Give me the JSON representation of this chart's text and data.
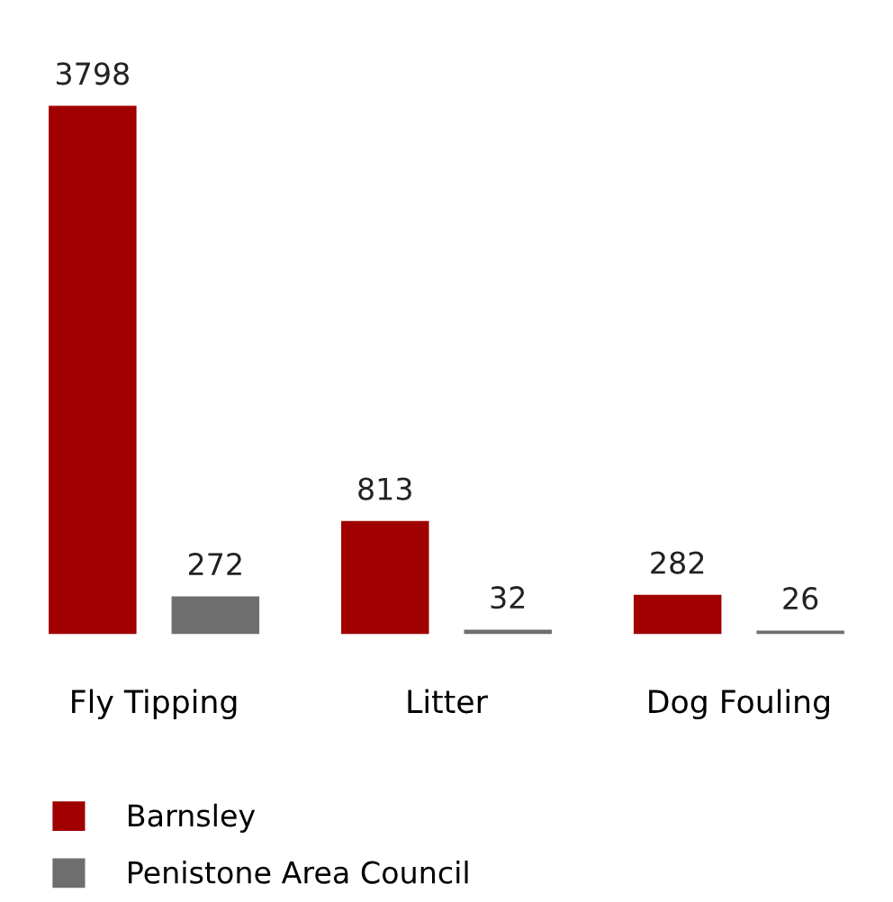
{
  "chart_data": {
    "type": "bar",
    "categories": [
      "Fly Tipping",
      "Litter",
      "Dog Fouling"
    ],
    "series": [
      {
        "name": "Barnsley",
        "color": "#a00000",
        "values": [
          3798,
          813,
          282
        ]
      },
      {
        "name": "Penistone Area Council",
        "color": "#6e6e6e",
        "values": [
          272,
          32,
          26
        ]
      }
    ],
    "data_labels": true,
    "legend": "bottom left",
    "grid": false
  }
}
